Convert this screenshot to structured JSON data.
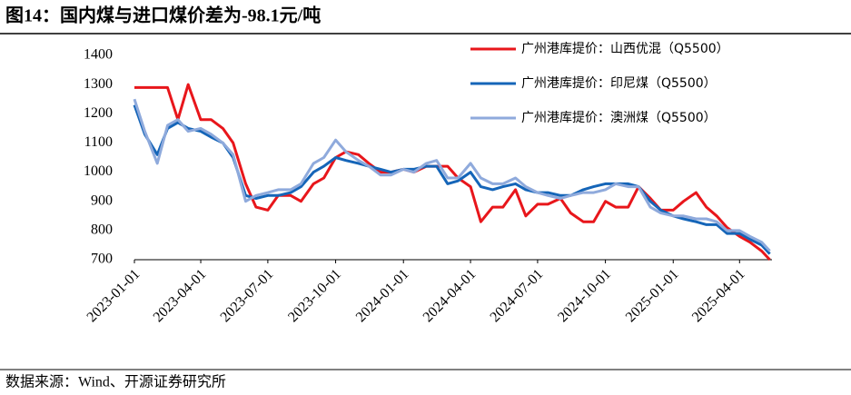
{
  "chart_data": {
    "type": "line",
    "title": "图14：国内煤与进口煤价差为-98.1元/吨",
    "source": "数据来源：Wind、开源证券研究所",
    "x": [
      "2023-01-01",
      "2023-01-15",
      "2023-02-01",
      "2023-02-15",
      "2023-03-01",
      "2023-03-15",
      "2023-04-01",
      "2023-04-15",
      "2023-05-01",
      "2023-05-15",
      "2023-06-01",
      "2023-06-15",
      "2023-07-01",
      "2023-07-15",
      "2023-08-01",
      "2023-08-15",
      "2023-09-01",
      "2023-09-15",
      "2023-10-01",
      "2023-10-15",
      "2023-11-01",
      "2023-11-15",
      "2023-12-01",
      "2023-12-15",
      "2024-01-01",
      "2024-01-15",
      "2024-02-01",
      "2024-02-15",
      "2024-03-01",
      "2024-03-15",
      "2024-04-01",
      "2024-04-15",
      "2024-05-01",
      "2024-05-15",
      "2024-06-01",
      "2024-06-15",
      "2024-07-01",
      "2024-07-15",
      "2024-08-01",
      "2024-08-15",
      "2024-09-01",
      "2024-09-15",
      "2024-10-01",
      "2024-10-15",
      "2024-11-01",
      "2024-11-15",
      "2024-12-01",
      "2024-12-15",
      "2025-01-01",
      "2025-01-15",
      "2025-02-01",
      "2025-02-15",
      "2025-03-01",
      "2025-03-15",
      "2025-04-01",
      "2025-04-15",
      "2025-05-01",
      "2025-05-12"
    ],
    "series": [
      {
        "name": "广州港库提价：山西优混（Q5500）",
        "color": "#e8161b",
        "values": [
          1290,
          1290,
          1290,
          1290,
          1180,
          1300,
          1180,
          1180,
          1150,
          1100,
          960,
          880,
          870,
          920,
          920,
          900,
          960,
          980,
          1050,
          1070,
          1060,
          1030,
          1000,
          1000,
          1010,
          1000,
          1020,
          1020,
          1020,
          980,
          950,
          830,
          880,
          880,
          940,
          850,
          890,
          890,
          910,
          860,
          830,
          830,
          900,
          880,
          880,
          950,
          910,
          870,
          870,
          900,
          930,
          880,
          850,
          810,
          780,
          760,
          730,
          700
        ]
      },
      {
        "name": "广州港库提价：印尼煤（Q5500）",
        "color": "#1565b8",
        "values": [
          1230,
          1130,
          1060,
          1150,
          1170,
          1150,
          1140,
          1120,
          1100,
          1050,
          920,
          910,
          920,
          920,
          930,
          950,
          1000,
          1020,
          1050,
          1040,
          1030,
          1020,
          1010,
          1000,
          1010,
          1010,
          1020,
          1020,
          960,
          970,
          1000,
          950,
          940,
          950,
          960,
          940,
          930,
          930,
          920,
          920,
          940,
          950,
          960,
          960,
          960,
          950,
          900,
          870,
          850,
          840,
          830,
          820,
          820,
          790,
          790,
          770,
          750,
          720
        ]
      },
      {
        "name": "广州港库提价：澳洲煤（Q5500）",
        "color": "#8faadc",
        "values": [
          1250,
          1140,
          1030,
          1160,
          1180,
          1140,
          1150,
          1130,
          1100,
          1060,
          900,
          920,
          930,
          940,
          940,
          960,
          1030,
          1050,
          1110,
          1070,
          1040,
          1020,
          990,
          990,
          1010,
          1000,
          1030,
          1040,
          980,
          980,
          1030,
          980,
          960,
          960,
          980,
          950,
          930,
          920,
          910,
          920,
          930,
          930,
          940,
          960,
          950,
          950,
          880,
          860,
          850,
          850,
          840,
          840,
          830,
          800,
          800,
          780,
          760,
          730
        ]
      }
    ],
    "xlim": [
      "2023-01-01",
      "2025-05-15"
    ],
    "xticks": [
      "2023-01-01",
      "2023-04-01",
      "2023-07-01",
      "2023-10-01",
      "2024-01-01",
      "2024-04-01",
      "2024-07-01",
      "2024-10-01",
      "2025-01-01",
      "2025-04-01"
    ],
    "ylim": [
      700,
      1400
    ],
    "yticks": [
      700,
      800,
      900,
      1000,
      1100,
      1200,
      1300,
      1400
    ],
    "legend": "upper right"
  }
}
